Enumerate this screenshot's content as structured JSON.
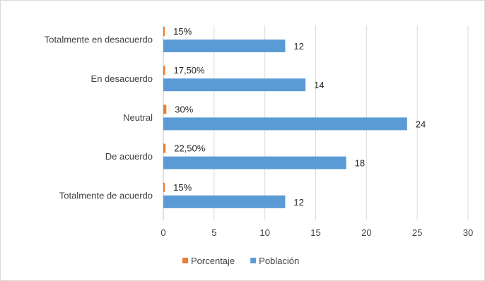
{
  "chart_data": {
    "type": "bar",
    "orientation": "horizontal",
    "categories": [
      "Totalmente en desacuerdo",
      "En desacuerdo",
      "Neutral",
      "De acuerdo",
      "Totalmente de acuerdo"
    ],
    "series": [
      {
        "name": "Porcentaje",
        "color": "#ED7D31",
        "values": [
          0.15,
          0.175,
          0.3,
          0.225,
          0.15
        ],
        "labels": [
          "15%",
          "17,50%",
          "30%",
          "22,50%",
          "15%"
        ]
      },
      {
        "name": "Población",
        "color": "#5B9BD5",
        "values": [
          12,
          14,
          24,
          18,
          12
        ],
        "labels": [
          "12",
          "14",
          "24",
          "18",
          "12"
        ]
      }
    ],
    "xlim": [
      0,
      30
    ],
    "xticks": [
      0,
      5,
      10,
      15,
      20,
      25,
      30
    ],
    "grid": true,
    "legend": "bottom",
    "legend_order": [
      "Porcentaje",
      "Población"
    ],
    "title": "",
    "xlabel": "",
    "ylabel": ""
  }
}
